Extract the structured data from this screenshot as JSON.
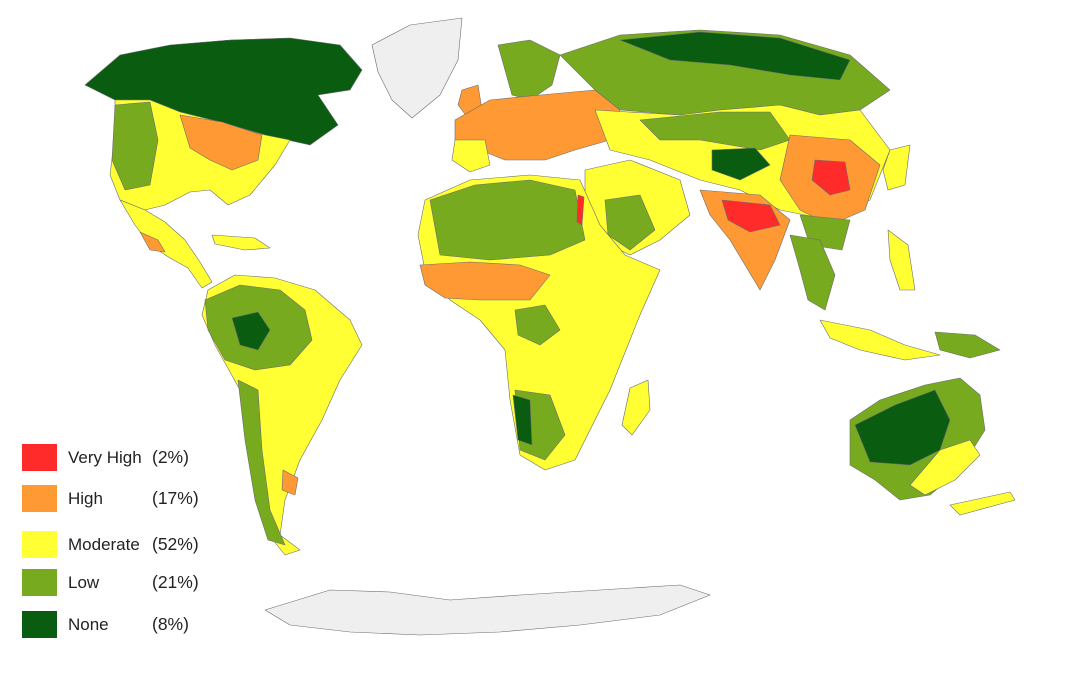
{
  "map": {
    "colors": {
      "ocean": "#ffffff",
      "ice": "#efefef",
      "border": "#6d6d6d",
      "very_high": "#ff2a2a",
      "high": "#ff9933",
      "moderate": "#ffff33",
      "low": "#77aa1f",
      "none": "#0a5c11"
    }
  },
  "legend": {
    "items": [
      {
        "label": "Very High",
        "percent": "(2%)",
        "color": "#ff2a2a"
      },
      {
        "label": "High",
        "percent": "(17%)",
        "color": "#ff9933"
      },
      {
        "label": "Moderate",
        "percent": "(52%)",
        "color": "#ffff33"
      },
      {
        "label": "Low",
        "percent": "(21%)",
        "color": "#77aa1f"
      },
      {
        "label": "None",
        "percent": "(8%)",
        "color": "#0a5c11"
      }
    ]
  }
}
